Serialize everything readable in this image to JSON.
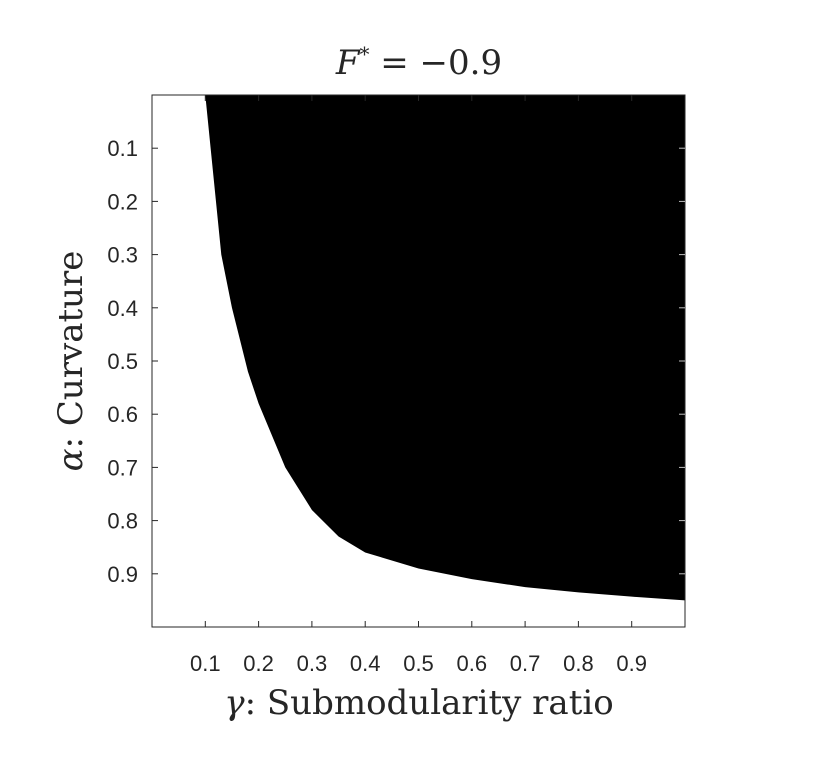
{
  "chart_data": {
    "type": "heatmap",
    "title_prefix": "F",
    "title_sup": "*",
    "title_suffix": " = −0.9",
    "xlabel_symbol": "γ",
    "xlabel_text": ": Submodularity ratio",
    "ylabel_symbol": "α",
    "ylabel_text": ": Curvature",
    "xlim": [
      0,
      1
    ],
    "ylim": [
      0,
      1
    ],
    "y_reversed": true,
    "xticks": [
      0.1,
      0.2,
      0.3,
      0.4,
      0.5,
      0.6,
      0.7,
      0.8,
      0.9
    ],
    "yticks": [
      0.1,
      0.2,
      0.3,
      0.4,
      0.5,
      0.6,
      0.7,
      0.8,
      0.9
    ],
    "xtick_labels": [
      "0.1",
      "0.2",
      "0.3",
      "0.4",
      "0.5",
      "0.6",
      "0.7",
      "0.8",
      "0.9"
    ],
    "ytick_labels": [
      "0.1",
      "0.2",
      "0.3",
      "0.4",
      "0.5",
      "0.6",
      "0.7",
      "0.8",
      "0.9"
    ],
    "region_color": "#000000",
    "background_color": "#ffffff",
    "region_description": "black region to the right of the boundary curve",
    "boundary": {
      "x": [
        0.1,
        0.11,
        0.12,
        0.13,
        0.15,
        0.18,
        0.2,
        0.25,
        0.3,
        0.35,
        0.4,
        0.5,
        0.6,
        0.7,
        0.8,
        0.9,
        1.0
      ],
      "y": [
        0.0,
        0.1,
        0.2,
        0.3,
        0.4,
        0.52,
        0.58,
        0.7,
        0.78,
        0.83,
        0.86,
        0.89,
        0.91,
        0.925,
        0.935,
        0.943,
        0.95
      ]
    }
  }
}
